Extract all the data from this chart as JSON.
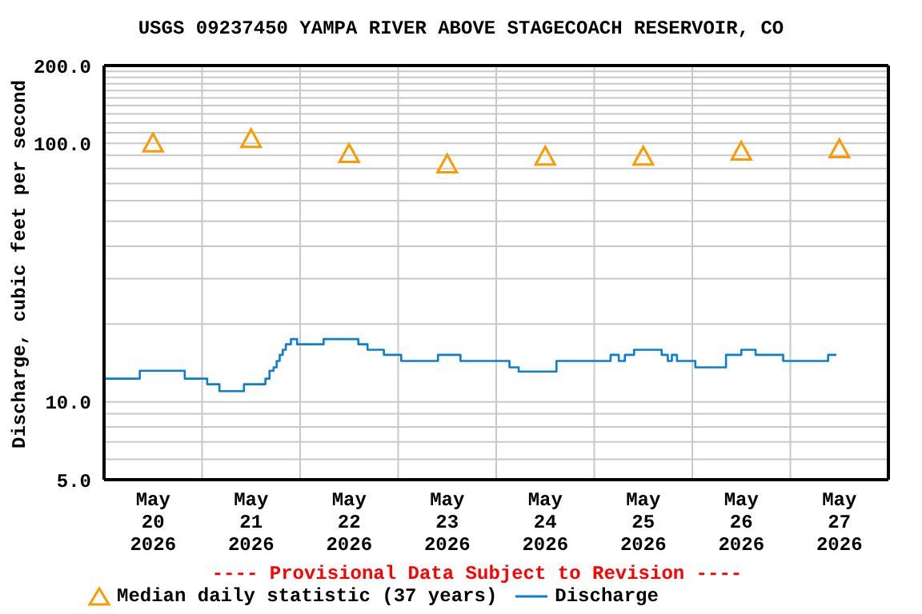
{
  "chart_data": {
    "type": "line",
    "title": "USGS 09237450 YAMPA RIVER ABOVE STAGECOACH RESERVOIR, CO",
    "ylabel": "Discharge, cubic feet per second",
    "annotations": [
      "---- Provisional Data Subject to Revision ----"
    ],
    "log": "y",
    "grid": true,
    "legend": "bottom",
    "ylim": [
      5,
      200
    ],
    "yticks": [
      {
        "value": 5,
        "label": "5.0"
      },
      {
        "value": 6,
        "label": null
      },
      {
        "value": 7,
        "label": null
      },
      {
        "value": 8,
        "label": null
      },
      {
        "value": 9,
        "label": null
      },
      {
        "value": 10,
        "label": "10.0"
      },
      {
        "value": 20,
        "label": null
      },
      {
        "value": 30,
        "label": null
      },
      {
        "value": 40,
        "label": null
      },
      {
        "value": 50,
        "label": null
      },
      {
        "value": 60,
        "label": null
      },
      {
        "value": 70,
        "label": null
      },
      {
        "value": 80,
        "label": null
      },
      {
        "value": 90,
        "label": null
      },
      {
        "value": 100,
        "label": "100.0"
      },
      {
        "value": 110,
        "label": null
      },
      {
        "value": 120,
        "label": null
      },
      {
        "value": 130,
        "label": null
      },
      {
        "value": 140,
        "label": null
      },
      {
        "value": 150,
        "label": null
      },
      {
        "value": 160,
        "label": null
      },
      {
        "value": 170,
        "label": null
      },
      {
        "value": 180,
        "label": null
      },
      {
        "value": 190,
        "label": null
      },
      {
        "value": 200,
        "label": "200.0"
      }
    ],
    "xlim": [
      "2026-05-20T00:00",
      "2026-05-28T00:00"
    ],
    "xticks": [
      {
        "value": "2026-05-20T12:00",
        "label": "May 20 2026"
      },
      {
        "value": "2026-05-21T00:00",
        "label": null
      },
      {
        "value": "2026-05-21T12:00",
        "label": "May 21 2026"
      },
      {
        "value": "2026-05-22T00:00",
        "label": null
      },
      {
        "value": "2026-05-22T12:00",
        "label": "May 22 2026"
      },
      {
        "value": "2026-05-23T00:00",
        "label": null
      },
      {
        "value": "2026-05-23T12:00",
        "label": "May 23 2026"
      },
      {
        "value": "2026-05-24T00:00",
        "label": null
      },
      {
        "value": "2026-05-24T12:00",
        "label": "May 24 2026"
      },
      {
        "value": "2026-05-25T00:00",
        "label": null
      },
      {
        "value": "2026-05-25T12:00",
        "label": "May 25 2026"
      },
      {
        "value": "2026-05-26T00:00",
        "label": null
      },
      {
        "value": "2026-05-26T12:00",
        "label": "May 26 2026"
      },
      {
        "value": "2026-05-27T00:00",
        "label": null
      },
      {
        "value": "2026-05-27T12:00",
        "label": "May 27 2026"
      }
    ],
    "series": [
      {
        "name": "Median daily statistic (37 years)",
        "type": "scatter",
        "marker": "triangle",
        "color": "#ff9900",
        "x": [
          "2026-05-20T12:00",
          "2026-05-21T12:00",
          "2026-05-22T12:00",
          "2026-05-23T12:00",
          "2026-05-24T12:00",
          "2026-05-25T12:00",
          "2026-05-26T12:00",
          "2026-05-27T12:00"
        ],
        "values": [
          100,
          104,
          91,
          83,
          89,
          89,
          93,
          95
        ]
      },
      {
        "name": "Discharge",
        "type": "step",
        "color": "#0a7fd0",
        "x": [
          "2026-05-20T00:00",
          "2026-05-20T08:45",
          "2026-05-20T19:45",
          "2026-05-21T01:15",
          "2026-05-21T04:15",
          "2026-05-21T10:15",
          "2026-05-21T15:30",
          "2026-05-21T16:30",
          "2026-05-21T17:30",
          "2026-05-21T18:15",
          "2026-05-21T19:00",
          "2026-05-21T19:45",
          "2026-05-21T20:30",
          "2026-05-21T21:45",
          "2026-05-21T23:15",
          "2026-05-22T05:45",
          "2026-05-22T14:15",
          "2026-05-22T16:30",
          "2026-05-22T20:30",
          "2026-05-23T00:45",
          "2026-05-23T09:45",
          "2026-05-23T15:15",
          "2026-05-24T03:15",
          "2026-05-24T05:30",
          "2026-05-24T14:45",
          "2026-05-25T04:00",
          "2026-05-25T06:00",
          "2026-05-25T07:30",
          "2026-05-25T09:45",
          "2026-05-25T16:30",
          "2026-05-25T18:00",
          "2026-05-25T19:00",
          "2026-05-25T20:15",
          "2026-05-26T00:45",
          "2026-05-26T08:15",
          "2026-05-26T12:00",
          "2026-05-26T15:30",
          "2026-05-26T22:15",
          "2026-05-27T09:15",
          "2026-05-27T11:15"
        ],
        "values": [
          12.3,
          13.2,
          12.3,
          11.7,
          11.0,
          11.7,
          12.3,
          13.2,
          13.6,
          14.4,
          15.2,
          15.9,
          16.7,
          17.5,
          16.7,
          17.5,
          16.7,
          15.9,
          15.2,
          14.4,
          15.2,
          14.4,
          13.6,
          13.1,
          14.4,
          15.2,
          14.4,
          15.2,
          15.9,
          15.2,
          14.4,
          15.2,
          14.4,
          13.6,
          15.2,
          15.9,
          15.2,
          14.4,
          15.2,
          15.2
        ]
      }
    ]
  }
}
